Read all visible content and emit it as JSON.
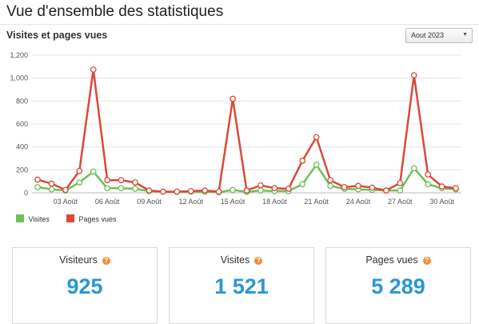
{
  "page": {
    "title": "Vue d'ensemble des statistiques"
  },
  "section": {
    "title": "Visites et pages vues"
  },
  "month_select": {
    "value": "Aout 2023"
  },
  "legend": [
    {
      "label": "Visites",
      "color": "#6cc15a"
    },
    {
      "label": "Pages vues",
      "color": "#d94a38"
    }
  ],
  "cards": [
    {
      "label": "Visiteurs",
      "value": "925",
      "help": "?"
    },
    {
      "label": "Visites",
      "value": "1 521",
      "help": "?"
    },
    {
      "label": "Pages vues",
      "value": "5 289",
      "help": "?"
    }
  ],
  "chart_data": {
    "type": "line",
    "x": [
      1,
      2,
      3,
      4,
      5,
      6,
      7,
      8,
      9,
      10,
      11,
      12,
      13,
      14,
      15,
      16,
      17,
      18,
      19,
      20,
      21,
      22,
      23,
      24,
      25,
      26,
      27,
      28,
      29,
      30,
      31
    ],
    "x_tick_labels": [
      "03 Août",
      "06 Août",
      "09 Août",
      "12 Août",
      "15 Août",
      "18 Août",
      "21 Août",
      "24 Août",
      "27 Août",
      "30 Août"
    ],
    "x_tick_positions": [
      3,
      6,
      9,
      12,
      15,
      18,
      21,
      24,
      27,
      30
    ],
    "y_tick_labels": [
      "0",
      "200",
      "400",
      "600",
      "800",
      "1,000",
      "1,200"
    ],
    "ylim": [
      0,
      1200
    ],
    "yticks": [
      0,
      200,
      400,
      600,
      800,
      1000,
      1200
    ],
    "grid": true,
    "legend_position": "bottom-left",
    "series": [
      {
        "name": "Visites",
        "color": "#6cc15a",
        "values": [
          50,
          30,
          20,
          90,
          185,
          40,
          40,
          35,
          15,
          10,
          8,
          10,
          10,
          5,
          25,
          8,
          20,
          15,
          15,
          75,
          245,
          60,
          35,
          30,
          25,
          20,
          20,
          215,
          75,
          40,
          30
        ]
      },
      {
        "name": "Pages vues",
        "color": "#d94a38",
        "values": [
          115,
          80,
          25,
          190,
          1075,
          110,
          110,
          90,
          20,
          10,
          10,
          15,
          20,
          10,
          820,
          20,
          65,
          40,
          35,
          280,
          485,
          110,
          50,
          60,
          45,
          20,
          85,
          1025,
          160,
          55,
          40
        ]
      }
    ]
  }
}
